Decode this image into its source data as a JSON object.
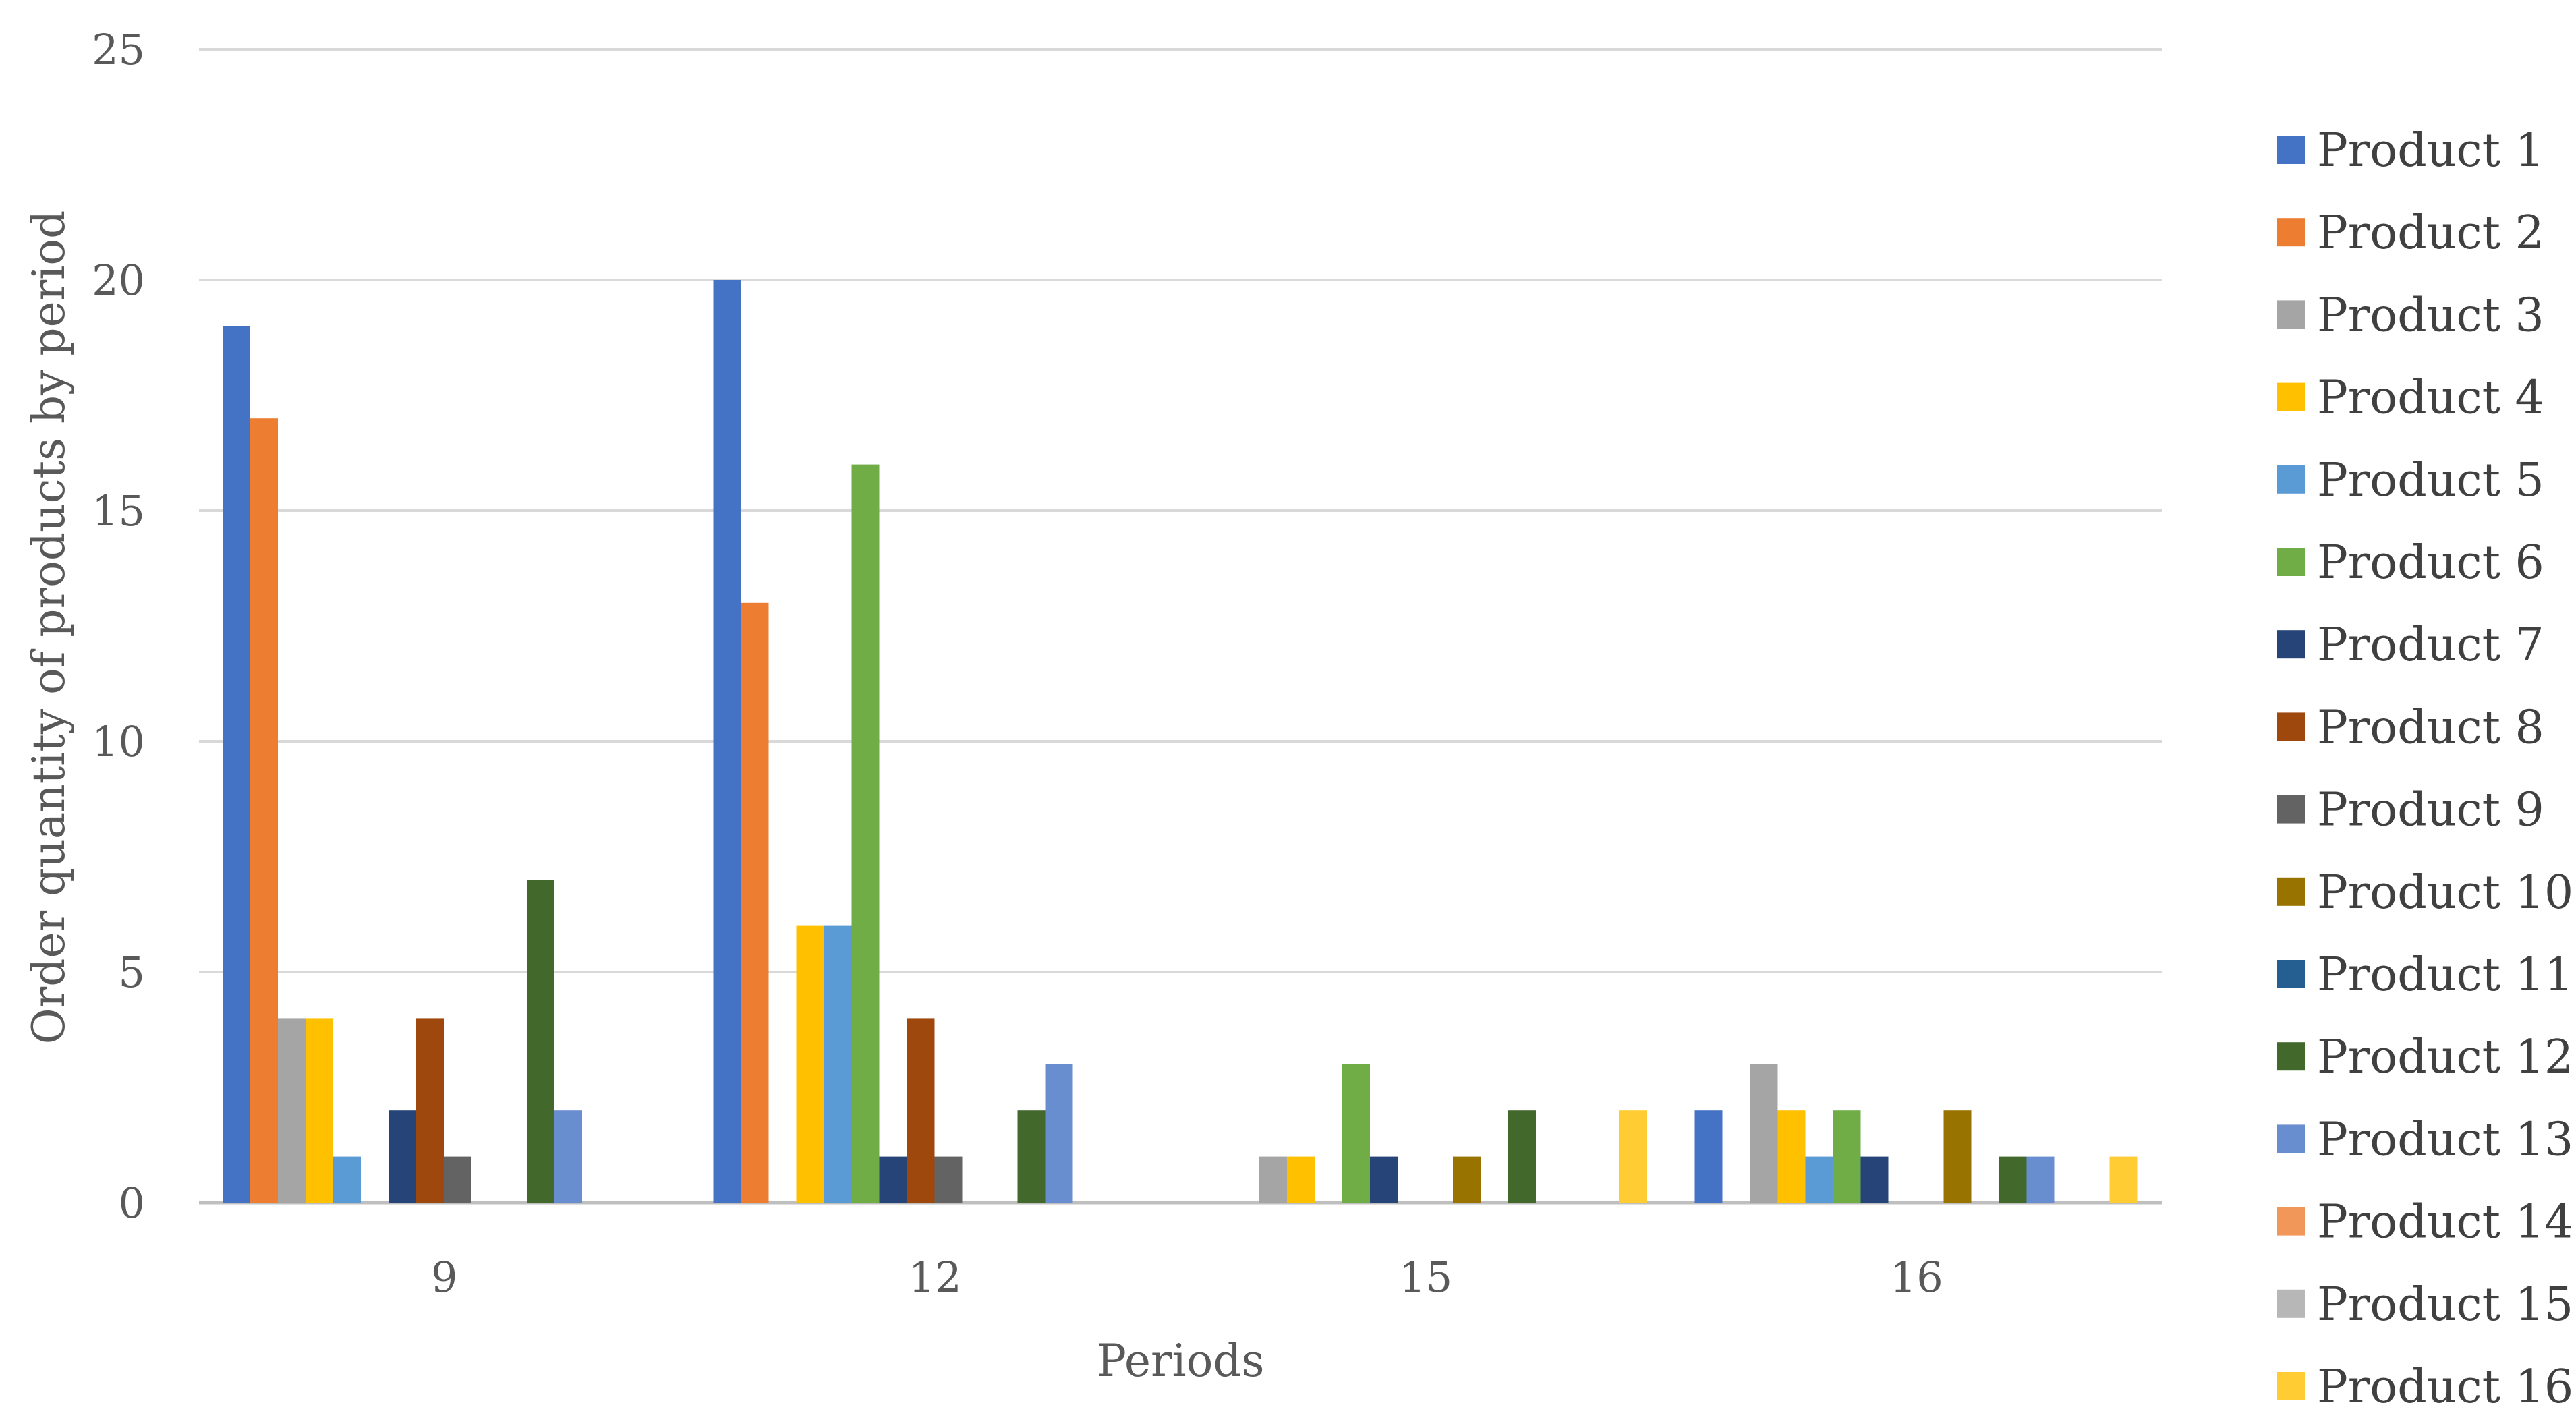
{
  "chart_data": {
    "type": "bar",
    "xlabel": "Periods",
    "ylabel": "Order quantity of products by period",
    "categories": [
      "9",
      "12",
      "15",
      "16"
    ],
    "ylim": [
      0,
      25
    ],
    "yticks": [
      0,
      5,
      10,
      15,
      20,
      25
    ],
    "grid": true,
    "legend_position": "right",
    "series": [
      {
        "name": "Product 1",
        "color": "#4472C4",
        "values": [
          19,
          20,
          0,
          2
        ]
      },
      {
        "name": "Product 2",
        "color": "#ED7D31",
        "values": [
          17,
          13,
          0,
          0
        ]
      },
      {
        "name": "Product 3",
        "color": "#A5A5A5",
        "values": [
          4,
          0,
          1,
          3
        ]
      },
      {
        "name": "Product 4",
        "color": "#FFC000",
        "values": [
          4,
          6,
          1,
          2
        ]
      },
      {
        "name": "Product 5",
        "color": "#5B9BD5",
        "values": [
          1,
          6,
          0,
          1
        ]
      },
      {
        "name": "Product 6",
        "color": "#70AD47",
        "values": [
          0,
          16,
          3,
          2
        ]
      },
      {
        "name": "Product 7",
        "color": "#264478",
        "values": [
          2,
          1,
          1,
          1
        ]
      },
      {
        "name": "Product 8",
        "color": "#9E480E",
        "values": [
          4,
          4,
          0,
          0
        ]
      },
      {
        "name": "Product 9",
        "color": "#636363",
        "values": [
          1,
          1,
          0,
          0
        ]
      },
      {
        "name": "Product 10",
        "color": "#997300",
        "values": [
          0,
          0,
          1,
          2
        ]
      },
      {
        "name": "Product 11",
        "color": "#255E91",
        "values": [
          0,
          0,
          0,
          0
        ]
      },
      {
        "name": "Product 12",
        "color": "#43682B",
        "values": [
          7,
          2,
          2,
          1
        ]
      },
      {
        "name": "Product 13",
        "color": "#698ED0",
        "values": [
          2,
          3,
          0,
          1
        ]
      },
      {
        "name": "Product 14",
        "color": "#F1975A",
        "values": [
          0,
          0,
          0,
          0
        ]
      },
      {
        "name": "Product 15",
        "color": "#B7B7B7",
        "values": [
          0,
          0,
          0,
          0
        ]
      },
      {
        "name": "Product 16",
        "color": "#FFCD33",
        "values": [
          0,
          0,
          2,
          1
        ]
      }
    ]
  }
}
